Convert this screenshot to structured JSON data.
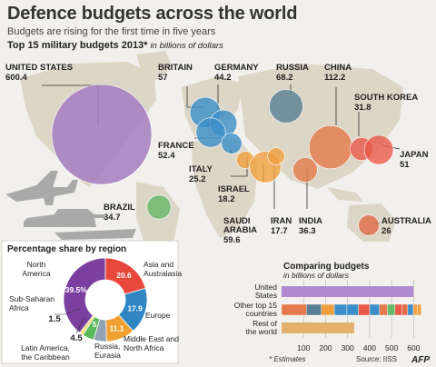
{
  "title": "Defence budgets across the world",
  "subtitle": "Budgets are rising for the first time in five years",
  "heading": "Top 15 military budgets 2013*",
  "heading_note": "in billions of dollars",
  "chart_data": [
    {
      "type": "bubble-map",
      "title": "Top 15 military budgets 2013*",
      "unit": "in billions of dollars",
      "countries": [
        {
          "name": "UNITED STATES",
          "value": 600.4,
          "color": "#a57cc0"
        },
        {
          "name": "BRITAIN",
          "value": 57,
          "color": "#3c8ec8"
        },
        {
          "name": "GERMANY",
          "value": 44.2,
          "color": "#3c8ec8"
        },
        {
          "name": "FRANCE",
          "value": 52.4,
          "color": "#3c8ec8"
        },
        {
          "name": "ITALY",
          "value": 25.2,
          "color": "#3c8ec8"
        },
        {
          "name": "RUSSIA",
          "value": 68.2,
          "color": "#5a7f93"
        },
        {
          "name": "CHINA",
          "value": 112.2,
          "color": "#e57a4c"
        },
        {
          "name": "SOUTH KOREA",
          "value": 31.8,
          "color": "#e85a4a"
        },
        {
          "name": "JAPAN",
          "value": 51.0,
          "color": "#e85a4a"
        },
        {
          "name": "ISRAEL",
          "value": 18.2,
          "color": "#f0a040"
        },
        {
          "name": "SAUDI ARABIA",
          "value": 59.6,
          "color": "#f0a040"
        },
        {
          "name": "IRAN",
          "value": 17.7,
          "color": "#f0a040"
        },
        {
          "name": "INDIA",
          "value": 36.3,
          "color": "#e57a4c"
        },
        {
          "name": "AUSTRALIA",
          "value": 26.0,
          "color": "#e06b47"
        },
        {
          "name": "BRAZIL",
          "value": 34.7,
          "color": "#66b86a"
        }
      ]
    },
    {
      "type": "pie",
      "title": "Percentage share by region",
      "slices": [
        {
          "name": "North America",
          "value": 39.5,
          "color": "#7b3fa0"
        },
        {
          "name": "Asia and Australasia",
          "value": 20.6,
          "color": "#e8473c"
        },
        {
          "name": "Europe",
          "value": 17.9,
          "color": "#2f86c2"
        },
        {
          "name": "Middle East and North Africa",
          "value": 11.1,
          "color": "#f0a030"
        },
        {
          "name": "Russia, Eurasia",
          "value": 5,
          "color": "#8fa3b3"
        },
        {
          "name": "Latin America, the Caribbean",
          "value": 4.5,
          "color": "#5cb85c"
        },
        {
          "name": "Sub-Saharan Africa",
          "value": 1.5,
          "color": "#f4e07a"
        }
      ]
    },
    {
      "type": "bar",
      "title": "Comparing budgets",
      "subtitle": "in billions of dollars",
      "categories": [
        "United States",
        "Other top 15 countries",
        "Rest of the world"
      ],
      "values": [
        600.4,
        634.9,
        330
      ],
      "segments_for_other_top15": [
        {
          "name": "CHINA",
          "value": 112.2,
          "color": "#e57a4c"
        },
        {
          "name": "RUSSIA",
          "value": 68.2,
          "color": "#5a7f93"
        },
        {
          "name": "SAUDI ARABIA",
          "value": 59.6,
          "color": "#f0a040"
        },
        {
          "name": "BRITAIN",
          "value": 57,
          "color": "#3c8ec8"
        },
        {
          "name": "FRANCE",
          "value": 52.4,
          "color": "#3c8ec8"
        },
        {
          "name": "JAPAN",
          "value": 51.0,
          "color": "#e85a4a"
        },
        {
          "name": "GERMANY",
          "value": 44.2,
          "color": "#3c8ec8"
        },
        {
          "name": "INDIA",
          "value": 36.3,
          "color": "#e57a4c"
        },
        {
          "name": "BRAZIL",
          "value": 34.7,
          "color": "#66b86a"
        },
        {
          "name": "SOUTH KOREA",
          "value": 31.8,
          "color": "#e85a4a"
        },
        {
          "name": "AUSTRALIA",
          "value": 26.0,
          "color": "#e06b47"
        },
        {
          "name": "ITALY",
          "value": 25.2,
          "color": "#3c8ec8"
        },
        {
          "name": "ISRAEL",
          "value": 18.2,
          "color": "#f0a040"
        },
        {
          "name": "IRAN",
          "value": 17.7,
          "color": "#f0a040"
        }
      ],
      "x_ticks": [
        100,
        200,
        300,
        400,
        500,
        600
      ],
      "xlim": [
        0,
        640
      ]
    }
  ],
  "footer": {
    "estimates": "* Estimates",
    "source": "Source: IISS",
    "logo": "AFP"
  }
}
